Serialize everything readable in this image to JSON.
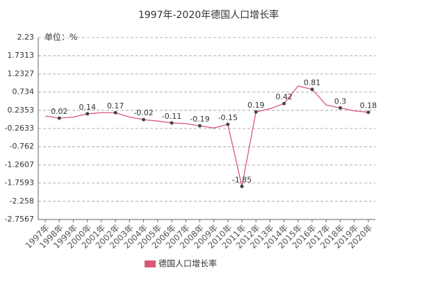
{
  "chart_data": {
    "type": "line",
    "title": "1997年-2020年德国人口增长率",
    "unit_label": "单位：%",
    "categories": [
      "1997年",
      "1998年",
      "1999年",
      "2000年",
      "2001年",
      "2002年",
      "2003年",
      "2004年",
      "2005年",
      "2006年",
      "2007年",
      "2008年",
      "2009年",
      "2010年",
      "2011年",
      "2012年",
      "2013年",
      "2014年",
      "2015年",
      "2016年",
      "2017年",
      "2018年",
      "2019年",
      "2020年"
    ],
    "series": [
      {
        "name": "德国人口增长率",
        "color": "#d9577a",
        "values": [
          0.08,
          0.02,
          0.05,
          0.14,
          0.17,
          0.17,
          0.05,
          -0.02,
          -0.06,
          -0.11,
          -0.13,
          -0.19,
          -0.25,
          -0.15,
          -1.85,
          0.19,
          0.28,
          0.42,
          0.9,
          0.81,
          0.38,
          0.3,
          0.22,
          0.18
        ],
        "value_labels": [
          null,
          "0.02",
          null,
          "0.14",
          null,
          "0.17",
          null,
          "-0.02",
          null,
          "-0.11",
          null,
          "-0.19",
          null,
          "-0.15",
          "-1.85",
          "0.19",
          null,
          "0.42",
          null,
          "0.81",
          null,
          "0.3",
          null,
          "0.18"
        ]
      }
    ],
    "ylim": [
      -2.7567,
      2.23
    ],
    "yticks": [
      2.23,
      1.7313,
      1.2327,
      0.734,
      0.2353,
      -0.2633,
      -0.762,
      -1.2607,
      -1.7593,
      -2.258,
      -2.7567
    ],
    "grid": true,
    "legend": "bottom"
  }
}
